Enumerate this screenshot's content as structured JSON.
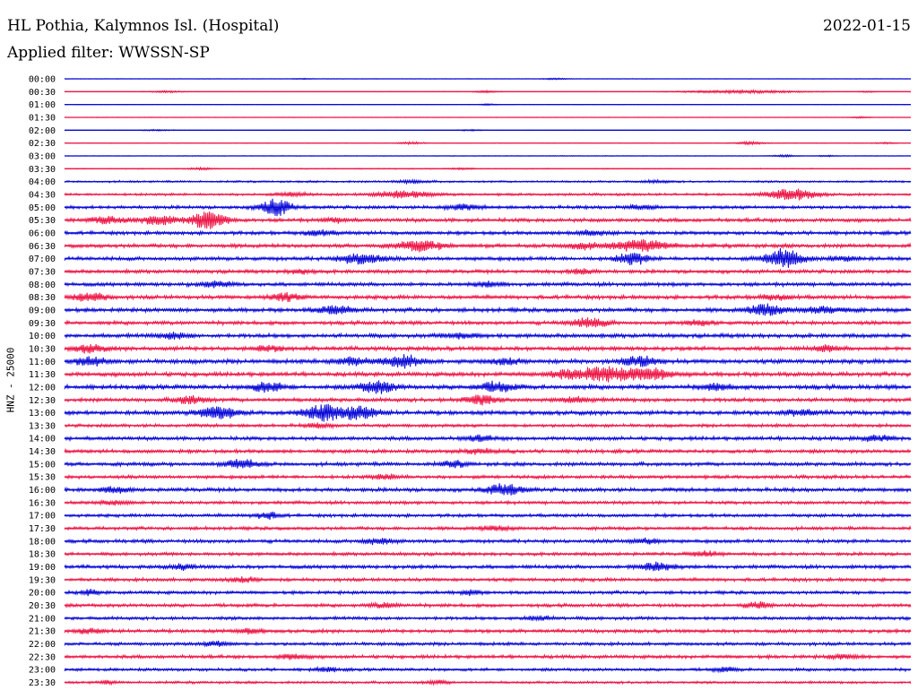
{
  "header": {
    "station": "HL Pothia, Kalymnos Isl. (Hospital)",
    "date": "2022-01-15",
    "filter": "Applied filter: WWSSN-SP"
  },
  "channel_label": "HNZ - 25000",
  "colors": {
    "even": "#0b0bd8",
    "odd": "#ee1848",
    "text": "#000000"
  },
  "chart_data": {
    "type": "line",
    "title": "HL Pothia, Kalymnos Isl. (Hospital)",
    "ylabel": "HNZ - 25000",
    "grid": false,
    "rows": [
      {
        "time": "00:00",
        "noise": 0.25,
        "bursts": [
          [
            28,
            0.5,
            3
          ],
          [
            58,
            0.8,
            4
          ]
        ]
      },
      {
        "time": "00:30",
        "noise": 0.35,
        "bursts": [
          [
            12,
            0.8,
            6
          ],
          [
            50,
            1.2,
            4
          ],
          [
            80,
            1.5,
            20
          ],
          [
            95,
            0.6,
            3
          ]
        ]
      },
      {
        "time": "01:00",
        "noise": 0.25,
        "bursts": [
          [
            50,
            0.8,
            3
          ]
        ]
      },
      {
        "time": "01:30",
        "noise": 0.3,
        "bursts": [
          [
            94,
            0.8,
            3
          ]
        ]
      },
      {
        "time": "02:00",
        "noise": 0.35,
        "bursts": [
          [
            11,
            0.6,
            5
          ],
          [
            48,
            0.7,
            4
          ]
        ]
      },
      {
        "time": "02:30",
        "noise": 0.4,
        "bursts": [
          [
            41,
            1.2,
            4
          ],
          [
            81,
            1.4,
            5
          ],
          [
            97,
            0.7,
            3
          ]
        ]
      },
      {
        "time": "03:00",
        "noise": 0.35,
        "bursts": [
          [
            85,
            1.0,
            4
          ],
          [
            90,
            0.6,
            3
          ]
        ]
      },
      {
        "time": "03:30",
        "noise": 0.6,
        "bursts": [
          [
            16,
            1.0,
            4
          ],
          [
            47,
            0.8,
            4
          ]
        ]
      },
      {
        "time": "04:00",
        "noise": 1.2,
        "bursts": [
          [
            41,
            1.5,
            5
          ],
          [
            70,
            1.0,
            5
          ]
        ]
      },
      {
        "time": "04:30",
        "noise": 1.5,
        "bursts": [
          [
            40,
            3.5,
            10
          ],
          [
            86,
            6.0,
            8
          ],
          [
            27,
            2.0,
            5
          ]
        ]
      },
      {
        "time": "05:00",
        "noise": 2.0,
        "bursts": [
          [
            25,
            9.0,
            5
          ],
          [
            47,
            2.5,
            6
          ],
          [
            68,
            2.0,
            5
          ]
        ]
      },
      {
        "time": "05:30",
        "noise": 2.3,
        "bursts": [
          [
            5,
            3.5,
            5
          ],
          [
            11,
            5.0,
            6
          ],
          [
            17,
            9.0,
            6
          ],
          [
            32,
            2.0,
            4
          ]
        ]
      },
      {
        "time": "06:00",
        "noise": 2.2,
        "bursts": [
          [
            30,
            2.5,
            5
          ],
          [
            62,
            2.0,
            6
          ]
        ]
      },
      {
        "time": "06:30",
        "noise": 2.4,
        "bursts": [
          [
            42,
            5.0,
            8
          ],
          [
            61,
            3.0,
            5
          ],
          [
            68,
            5.5,
            10
          ]
        ]
      },
      {
        "time": "07:00",
        "noise": 2.4,
        "bursts": [
          [
            35,
            5.5,
            7
          ],
          [
            67,
            6.5,
            5
          ],
          [
            85,
            10.0,
            6
          ],
          [
            92,
            2.5,
            5
          ]
        ]
      },
      {
        "time": "07:30",
        "noise": 2.2,
        "bursts": [
          [
            28,
            2.2,
            4
          ],
          [
            61,
            2.5,
            4
          ]
        ]
      },
      {
        "time": "08:00",
        "noise": 2.3,
        "bursts": [
          [
            18,
            2.5,
            6
          ],
          [
            50,
            2.2,
            5
          ]
        ]
      },
      {
        "time": "08:30",
        "noise": 2.4,
        "bursts": [
          [
            3,
            4.0,
            6
          ],
          [
            26,
            4.0,
            5
          ],
          [
            84,
            2.5,
            5
          ]
        ]
      },
      {
        "time": "09:00",
        "noise": 2.5,
        "bursts": [
          [
            32,
            4.0,
            6
          ],
          [
            83,
            6.0,
            6
          ],
          [
            90,
            3.0,
            8
          ]
        ]
      },
      {
        "time": "09:30",
        "noise": 2.3,
        "bursts": [
          [
            62,
            5.0,
            6
          ],
          [
            75,
            2.5,
            5
          ]
        ]
      },
      {
        "time": "10:00",
        "noise": 2.5,
        "bursts": [
          [
            13,
            3.0,
            5
          ],
          [
            47,
            2.5,
            6
          ]
        ]
      },
      {
        "time": "10:30",
        "noise": 2.5,
        "bursts": [
          [
            3,
            4.0,
            5
          ],
          [
            24,
            2.5,
            5
          ],
          [
            90,
            3.0,
            4
          ]
        ]
      },
      {
        "time": "11:00",
        "noise": 2.7,
        "bursts": [
          [
            3,
            5.0,
            5
          ],
          [
            34,
            4.0,
            6
          ],
          [
            40,
            6.0,
            6
          ],
          [
            52,
            3.0,
            5
          ],
          [
            68,
            5.0,
            6
          ]
        ]
      },
      {
        "time": "11:30",
        "noise": 2.6,
        "bursts": [
          [
            60,
            4.0,
            8
          ],
          [
            64,
            6.0,
            8
          ],
          [
            69,
            6.5,
            8
          ]
        ]
      },
      {
        "time": "12:00",
        "noise": 2.7,
        "bursts": [
          [
            24,
            5.0,
            5
          ],
          [
            37,
            6.0,
            6
          ],
          [
            51,
            5.0,
            6
          ],
          [
            77,
            3.0,
            5
          ]
        ]
      },
      {
        "time": "12:30",
        "noise": 2.4,
        "bursts": [
          [
            15,
            4.0,
            5
          ],
          [
            49,
            5.0,
            5
          ],
          [
            60,
            2.5,
            6
          ]
        ]
      },
      {
        "time": "13:00",
        "noise": 2.6,
        "bursts": [
          [
            18,
            6.5,
            6
          ],
          [
            30,
            3.0,
            5
          ],
          [
            31,
            5.5,
            7
          ],
          [
            35,
            6.0,
            6
          ],
          [
            87,
            3.0,
            5
          ]
        ]
      },
      {
        "time": "13:30",
        "noise": 2.0,
        "bursts": [
          [
            30,
            1.8,
            5
          ]
        ]
      },
      {
        "time": "14:00",
        "noise": 2.3,
        "bursts": [
          [
            49,
            2.5,
            5
          ],
          [
            96,
            3.0,
            5
          ]
        ]
      },
      {
        "time": "14:30",
        "noise": 2.2,
        "bursts": [
          [
            49,
            2.2,
            6
          ]
        ]
      },
      {
        "time": "15:00",
        "noise": 2.3,
        "bursts": [
          [
            21,
            5.0,
            5
          ],
          [
            46,
            3.0,
            4
          ]
        ]
      },
      {
        "time": "15:30",
        "noise": 2.1,
        "bursts": [
          [
            38,
            2.2,
            5
          ]
        ]
      },
      {
        "time": "16:00",
        "noise": 2.3,
        "bursts": [
          [
            52,
            6.0,
            6
          ],
          [
            6,
            2.5,
            5
          ]
        ]
      },
      {
        "time": "16:30",
        "noise": 2.0,
        "bursts": [
          [
            6,
            2.0,
            5
          ]
        ]
      },
      {
        "time": "17:00",
        "noise": 2.0,
        "bursts": [
          [
            24,
            3.5,
            4
          ]
        ]
      },
      {
        "time": "17:30",
        "noise": 2.0,
        "bursts": [
          [
            51,
            2.0,
            6
          ]
        ]
      },
      {
        "time": "18:00",
        "noise": 2.2,
        "bursts": [
          [
            37,
            3.0,
            5
          ],
          [
            69,
            2.5,
            5
          ]
        ]
      },
      {
        "time": "18:30",
        "noise": 2.0,
        "bursts": [
          [
            76,
            2.2,
            5
          ]
        ]
      },
      {
        "time": "19:00",
        "noise": 2.2,
        "bursts": [
          [
            14,
            2.5,
            4
          ],
          [
            70,
            4.5,
            6
          ]
        ]
      },
      {
        "time": "19:30",
        "noise": 2.1,
        "bursts": [
          [
            21,
            2.2,
            5
          ]
        ]
      },
      {
        "time": "20:00",
        "noise": 2.0,
        "bursts": [
          [
            3,
            2.5,
            3
          ],
          [
            48,
            2.5,
            3
          ]
        ]
      },
      {
        "time": "20:30",
        "noise": 2.1,
        "bursts": [
          [
            38,
            2.2,
            5
          ],
          [
            82,
            3.0,
            4
          ]
        ]
      },
      {
        "time": "21:00",
        "noise": 2.0,
        "bursts": [
          [
            56,
            2.0,
            5
          ]
        ]
      },
      {
        "time": "21:30",
        "noise": 2.1,
        "bursts": [
          [
            3,
            2.0,
            5
          ],
          [
            22,
            2.5,
            4
          ]
        ]
      },
      {
        "time": "22:00",
        "noise": 2.0,
        "bursts": [
          [
            18,
            2.5,
            4
          ]
        ]
      },
      {
        "time": "22:30",
        "noise": 2.1,
        "bursts": [
          [
            27,
            2.5,
            5
          ],
          [
            92,
            2.2,
            5
          ]
        ]
      },
      {
        "time": "23:00",
        "noise": 1.8,
        "bursts": [
          [
            31,
            2.0,
            4
          ],
          [
            78,
            2.0,
            4
          ]
        ]
      },
      {
        "time": "23:30",
        "noise": 1.5,
        "bursts": [
          [
            5,
            1.5,
            3
          ],
          [
            44,
            1.8,
            4
          ]
        ]
      }
    ]
  }
}
